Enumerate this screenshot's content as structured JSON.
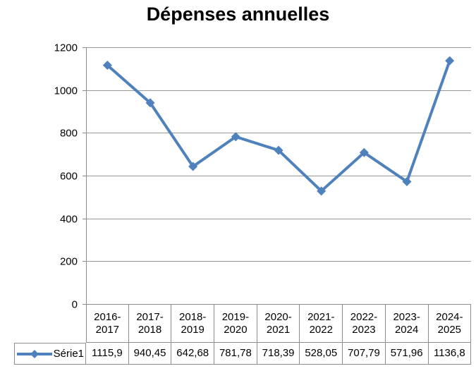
{
  "title": "Dépenses annuelles",
  "chart_data": {
    "type": "line",
    "title": "Dépenses annuelles",
    "categories": [
      "2016-2017",
      "2017-2018",
      "2018-2019",
      "2019-2020",
      "2020-2021",
      "2021-2022",
      "2022-2023",
      "2023-2024",
      "2024-2025"
    ],
    "series": [
      {
        "name": "Série1",
        "values": [
          1115.9,
          940.45,
          642.68,
          781.78,
          718.39,
          528.05,
          707.79,
          571.96,
          1136.8
        ],
        "value_labels": [
          "1115,9",
          "940,45",
          "642,68",
          "781,78",
          "718,39",
          "528,05",
          "707,79",
          "571,96",
          "1136,8"
        ],
        "color": "#4F81BD",
        "marker": "diamond"
      }
    ],
    "xlabel": "",
    "ylabel": "",
    "ylim": [
      0,
      1200
    ],
    "yticks": [
      "0",
      "200",
      "400",
      "600",
      "800",
      "1000",
      "1200"
    ],
    "grid": true,
    "legend_position": "bottom-table"
  },
  "colors": {
    "series": "#4F81BD",
    "gridline": "#999999",
    "axis_border": "#8c8c8c",
    "text": "#000000",
    "background": "#ffffff"
  }
}
